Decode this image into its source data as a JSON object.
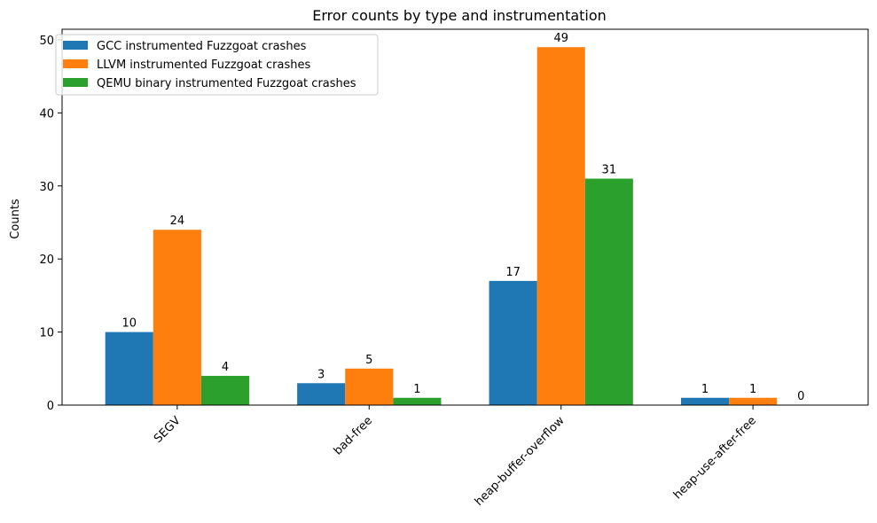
{
  "chart_data": {
    "type": "bar",
    "title": "Error counts by type and instrumentation",
    "xlabel": "",
    "ylabel": "Counts",
    "categories": [
      "SEGV",
      "bad-free",
      "heap-buffer-overflow",
      "heap-use-after-free"
    ],
    "series": [
      {
        "name": "GCC instrumented Fuzzgoat crashes",
        "values": [
          10,
          3,
          17,
          1
        ],
        "color": "#1f77b4"
      },
      {
        "name": "LLVM instrumented Fuzzgoat crashes",
        "values": [
          24,
          5,
          49,
          1
        ],
        "color": "#ff7f0e"
      },
      {
        "name": "QEMU binary instrumented Fuzzgoat crashes",
        "values": [
          4,
          1,
          31,
          0
        ],
        "color": "#2ca02c"
      }
    ],
    "ylim": [
      0,
      51.45
    ],
    "yticks": [
      0,
      10,
      20,
      30,
      40,
      50
    ],
    "grid": false,
    "legend_position": "top-left",
    "xtick_rotation": 45
  }
}
